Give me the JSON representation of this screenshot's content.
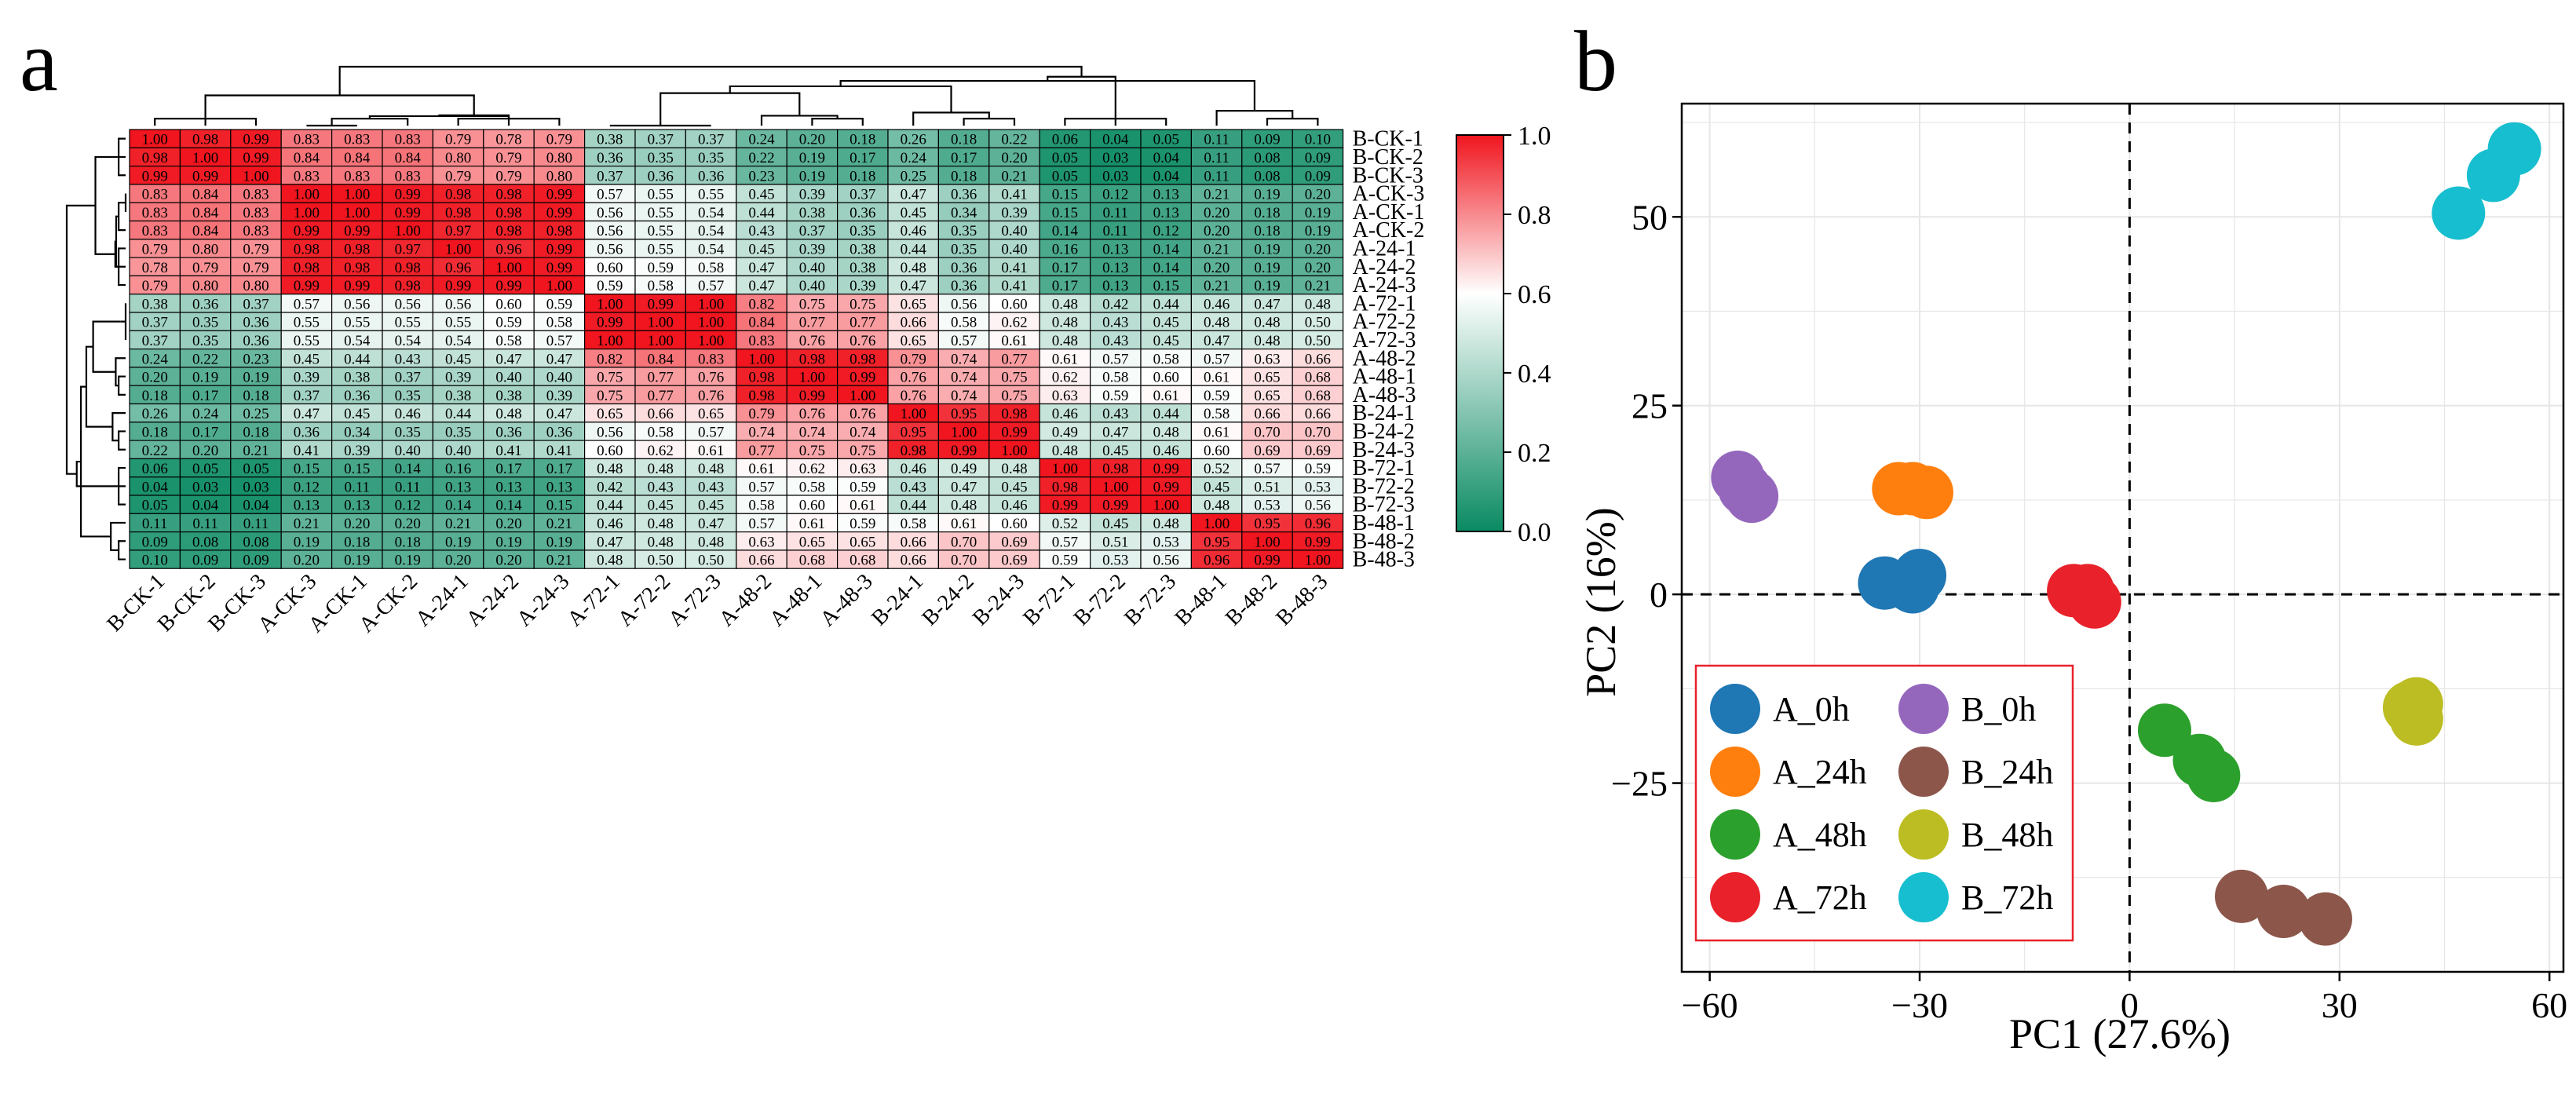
{
  "panels": {
    "a": "a",
    "b": "b"
  },
  "chart_data": [
    {
      "type": "heatmap",
      "title": "",
      "labels": [
        "B-CK-1",
        "B-CK-2",
        "B-CK-3",
        "A-CK-3",
        "A-CK-1",
        "A-CK-2",
        "A-24-1",
        "A-24-2",
        "A-24-3",
        "A-72-1",
        "A-72-2",
        "A-72-3",
        "A-48-2",
        "A-48-1",
        "A-48-3",
        "B-24-1",
        "B-24-2",
        "B-24-3",
        "B-72-1",
        "B-72-2",
        "B-72-3",
        "B-48-1",
        "B-48-2",
        "B-48-3"
      ],
      "values": [
        [
          1.0,
          0.98,
          0.99,
          0.83,
          0.83,
          0.83,
          0.79,
          0.78,
          0.79,
          0.38,
          0.37,
          0.37,
          0.24,
          0.2,
          0.18,
          0.26,
          0.18,
          0.22,
          0.06,
          0.04,
          0.05,
          0.11,
          0.09,
          0.1
        ],
        [
          0.98,
          1.0,
          0.99,
          0.84,
          0.84,
          0.84,
          0.8,
          0.79,
          0.8,
          0.36,
          0.35,
          0.35,
          0.22,
          0.19,
          0.17,
          0.24,
          0.17,
          0.2,
          0.05,
          0.03,
          0.04,
          0.11,
          0.08,
          0.09
        ],
        [
          0.99,
          0.99,
          1.0,
          0.83,
          0.83,
          0.83,
          0.79,
          0.79,
          0.8,
          0.37,
          0.36,
          0.36,
          0.23,
          0.19,
          0.18,
          0.25,
          0.18,
          0.21,
          0.05,
          0.03,
          0.04,
          0.11,
          0.08,
          0.09
        ],
        [
          0.83,
          0.84,
          0.83,
          1.0,
          1.0,
          0.99,
          0.98,
          0.98,
          0.99,
          0.57,
          0.55,
          0.55,
          0.45,
          0.39,
          0.37,
          0.47,
          0.36,
          0.41,
          0.15,
          0.12,
          0.13,
          0.21,
          0.19,
          0.2
        ],
        [
          0.83,
          0.84,
          0.83,
          1.0,
          1.0,
          0.99,
          0.98,
          0.98,
          0.99,
          0.56,
          0.55,
          0.54,
          0.44,
          0.38,
          0.36,
          0.45,
          0.34,
          0.39,
          0.15,
          0.11,
          0.13,
          0.2,
          0.18,
          0.19
        ],
        [
          0.83,
          0.84,
          0.83,
          0.99,
          0.99,
          1.0,
          0.97,
          0.98,
          0.98,
          0.56,
          0.55,
          0.54,
          0.43,
          0.37,
          0.35,
          0.46,
          0.35,
          0.4,
          0.14,
          0.11,
          0.12,
          0.2,
          0.18,
          0.19
        ],
        [
          0.79,
          0.8,
          0.79,
          0.98,
          0.98,
          0.97,
          1.0,
          0.96,
          0.99,
          0.56,
          0.55,
          0.54,
          0.45,
          0.39,
          0.38,
          0.44,
          0.35,
          0.4,
          0.16,
          0.13,
          0.14,
          0.21,
          0.19,
          0.2
        ],
        [
          0.78,
          0.79,
          0.79,
          0.98,
          0.98,
          0.98,
          0.96,
          1.0,
          0.99,
          0.6,
          0.59,
          0.58,
          0.47,
          0.4,
          0.38,
          0.48,
          0.36,
          0.41,
          0.17,
          0.13,
          0.14,
          0.2,
          0.19,
          0.2
        ],
        [
          0.79,
          0.8,
          0.8,
          0.99,
          0.99,
          0.98,
          0.99,
          0.99,
          1.0,
          0.59,
          0.58,
          0.57,
          0.47,
          0.4,
          0.39,
          0.47,
          0.36,
          0.41,
          0.17,
          0.13,
          0.15,
          0.21,
          0.19,
          0.21
        ],
        [
          0.38,
          0.36,
          0.37,
          0.57,
          0.56,
          0.56,
          0.56,
          0.6,
          0.59,
          1.0,
          0.99,
          1.0,
          0.82,
          0.75,
          0.75,
          0.65,
          0.56,
          0.6,
          0.48,
          0.42,
          0.44,
          0.46,
          0.47,
          0.48
        ],
        [
          0.37,
          0.35,
          0.36,
          0.55,
          0.55,
          0.55,
          0.55,
          0.59,
          0.58,
          0.99,
          1.0,
          1.0,
          0.84,
          0.77,
          0.77,
          0.66,
          0.58,
          0.62,
          0.48,
          0.43,
          0.45,
          0.48,
          0.48,
          0.5
        ],
        [
          0.37,
          0.35,
          0.36,
          0.55,
          0.54,
          0.54,
          0.54,
          0.58,
          0.57,
          1.0,
          1.0,
          1.0,
          0.83,
          0.76,
          0.76,
          0.65,
          0.57,
          0.61,
          0.48,
          0.43,
          0.45,
          0.47,
          0.48,
          0.5
        ],
        [
          0.24,
          0.22,
          0.23,
          0.45,
          0.44,
          0.43,
          0.45,
          0.47,
          0.47,
          0.82,
          0.84,
          0.83,
          1.0,
          0.98,
          0.98,
          0.79,
          0.74,
          0.77,
          0.61,
          0.57,
          0.58,
          0.57,
          0.63,
          0.66
        ],
        [
          0.2,
          0.19,
          0.19,
          0.39,
          0.38,
          0.37,
          0.39,
          0.4,
          0.4,
          0.75,
          0.77,
          0.76,
          0.98,
          1.0,
          0.99,
          0.76,
          0.74,
          0.75,
          0.62,
          0.58,
          0.6,
          0.61,
          0.65,
          0.68
        ],
        [
          0.18,
          0.17,
          0.18,
          0.37,
          0.36,
          0.35,
          0.38,
          0.38,
          0.39,
          0.75,
          0.77,
          0.76,
          0.98,
          0.99,
          1.0,
          0.76,
          0.74,
          0.75,
          0.63,
          0.59,
          0.61,
          0.59,
          0.65,
          0.68
        ],
        [
          0.26,
          0.24,
          0.25,
          0.47,
          0.45,
          0.46,
          0.44,
          0.48,
          0.47,
          0.65,
          0.66,
          0.65,
          0.79,
          0.76,
          0.76,
          1.0,
          0.95,
          0.98,
          0.46,
          0.43,
          0.44,
          0.58,
          0.66,
          0.66
        ],
        [
          0.18,
          0.17,
          0.18,
          0.36,
          0.34,
          0.35,
          0.35,
          0.36,
          0.36,
          0.56,
          0.58,
          0.57,
          0.74,
          0.74,
          0.74,
          0.95,
          1.0,
          0.99,
          0.49,
          0.47,
          0.48,
          0.61,
          0.7,
          0.7
        ],
        [
          0.22,
          0.2,
          0.21,
          0.41,
          0.39,
          0.4,
          0.4,
          0.41,
          0.41,
          0.6,
          0.62,
          0.61,
          0.77,
          0.75,
          0.75,
          0.98,
          0.99,
          1.0,
          0.48,
          0.45,
          0.46,
          0.6,
          0.69,
          0.69
        ],
        [
          0.06,
          0.05,
          0.05,
          0.15,
          0.15,
          0.14,
          0.16,
          0.17,
          0.17,
          0.48,
          0.48,
          0.48,
          0.61,
          0.62,
          0.63,
          0.46,
          0.49,
          0.48,
          1.0,
          0.98,
          0.99,
          0.52,
          0.57,
          0.59
        ],
        [
          0.04,
          0.03,
          0.03,
          0.12,
          0.11,
          0.11,
          0.13,
          0.13,
          0.13,
          0.42,
          0.43,
          0.43,
          0.57,
          0.58,
          0.59,
          0.43,
          0.47,
          0.45,
          0.98,
          1.0,
          0.99,
          0.45,
          0.51,
          0.53
        ],
        [
          0.05,
          0.04,
          0.04,
          0.13,
          0.13,
          0.12,
          0.14,
          0.14,
          0.15,
          0.44,
          0.45,
          0.45,
          0.58,
          0.6,
          0.61,
          0.44,
          0.48,
          0.46,
          0.99,
          0.99,
          1.0,
          0.48,
          0.53,
          0.56
        ],
        [
          0.11,
          0.11,
          0.11,
          0.21,
          0.2,
          0.2,
          0.21,
          0.2,
          0.21,
          0.46,
          0.48,
          0.47,
          0.57,
          0.61,
          0.59,
          0.58,
          0.61,
          0.6,
          0.52,
          0.45,
          0.48,
          1.0,
          0.95,
          0.96
        ],
        [
          0.09,
          0.08,
          0.08,
          0.19,
          0.18,
          0.18,
          0.19,
          0.19,
          0.19,
          0.47,
          0.48,
          0.48,
          0.63,
          0.65,
          0.65,
          0.66,
          0.7,
          0.69,
          0.57,
          0.51,
          0.53,
          0.95,
          1.0,
          0.99
        ],
        [
          0.1,
          0.09,
          0.09,
          0.2,
          0.19,
          0.19,
          0.2,
          0.2,
          0.21,
          0.48,
          0.5,
          0.5,
          0.66,
          0.68,
          0.68,
          0.66,
          0.7,
          0.69,
          0.59,
          0.53,
          0.56,
          0.96,
          0.99,
          1.0
        ]
      ],
      "colorbar": {
        "ticks": [
          "1.0",
          "0.8",
          "0.6",
          "0.4",
          "0.2",
          "0.0"
        ],
        "range": [
          0,
          1
        ],
        "colors": {
          "low": "#0A8A62",
          "mid": "#FFFFFF",
          "high": "#F0151E"
        }
      },
      "dendrograms": true
    },
    {
      "type": "scatter",
      "xlabel": "PC1 (27.6%)",
      "ylabel": "PC2 (16%)",
      "xlim": [
        -64,
        62
      ],
      "ylim": [
        -50,
        65
      ],
      "xticks": [
        -60,
        -30,
        0,
        30,
        60
      ],
      "xtick_labels": [
        "−60",
        "−30",
        "0",
        "30",
        "60"
      ],
      "yticks": [
        -25,
        0,
        25,
        50
      ],
      "ytick_labels": [
        "−25",
        "0",
        "25",
        "50"
      ],
      "grid": true,
      "series": [
        {
          "name": "A_0h",
          "color": "#1F77B4",
          "points": [
            [
              -35,
              1.5
            ],
            [
              -31,
              1
            ],
            [
              -30,
              2.5
            ]
          ]
        },
        {
          "name": "A_24h",
          "color": "#FF7F0E",
          "points": [
            [
              -33,
              14
            ],
            [
              -31,
              14
            ],
            [
              -29,
              13.5
            ]
          ]
        },
        {
          "name": "A_48h",
          "color": "#2CA02C",
          "points": [
            [
              5,
              -18
            ],
            [
              10,
              -22
            ],
            [
              12,
              -24
            ]
          ]
        },
        {
          "name": "A_72h",
          "color": "#E8212A",
          "points": [
            [
              -8,
              0.5
            ],
            [
              -6,
              0.5
            ],
            [
              -5,
              -1
            ]
          ]
        },
        {
          "name": "B_0h",
          "color": "#9467BD",
          "points": [
            [
              -56,
              15.5
            ],
            [
              -55,
              14
            ],
            [
              -54,
              13
            ]
          ]
        },
        {
          "name": "B_24h",
          "color": "#8C564B",
          "points": [
            [
              16,
              -40
            ],
            [
              22,
              -42
            ],
            [
              28,
              -43
            ]
          ]
        },
        {
          "name": "B_48h",
          "color": "#BCBD22",
          "points": [
            [
              40,
              -15
            ],
            [
              41,
              -14.5
            ],
            [
              41,
              -16.5
            ]
          ]
        },
        {
          "name": "B_72h",
          "color": "#17BECF",
          "points": [
            [
              47,
              50.5
            ],
            [
              52,
              55.5
            ],
            [
              55,
              59
            ]
          ]
        }
      ],
      "legend": {
        "placement": "bottom-left",
        "border_color": "#E8212A"
      }
    }
  ]
}
